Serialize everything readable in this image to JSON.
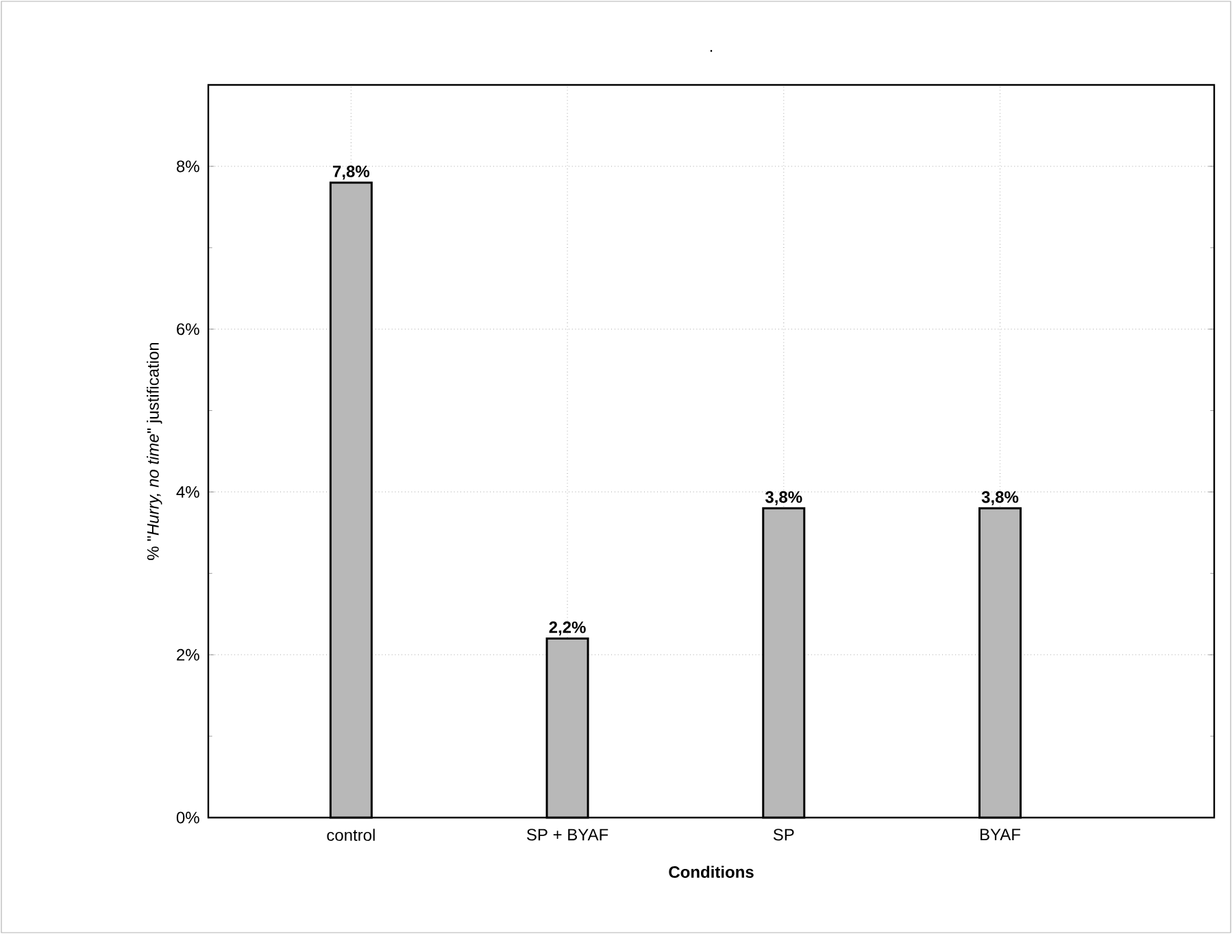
{
  "chart_data": {
    "type": "bar",
    "title": ".",
    "xlabel": "Conditions",
    "ylabel": "% \"*Hurry, no time*\" justification",
    "categories": [
      "control",
      "SP + BYAF",
      "SP",
      "BYAF"
    ],
    "values": [
      7.8,
      2.2,
      3.8,
      3.8
    ],
    "value_labels": [
      "7,8%",
      "2,2%",
      "3,8%",
      "3,8%"
    ],
    "color": "#b8b8b8",
    "ylim": [
      0,
      9
    ],
    "yticks": [
      {
        "value": 0,
        "label": "0%"
      },
      {
        "value": 2,
        "label": "2%"
      },
      {
        "value": 4,
        "label": "4%"
      },
      {
        "value": 6,
        "label": "6%"
      },
      {
        "value": 8,
        "label": "8%"
      }
    ],
    "grid": true
  }
}
